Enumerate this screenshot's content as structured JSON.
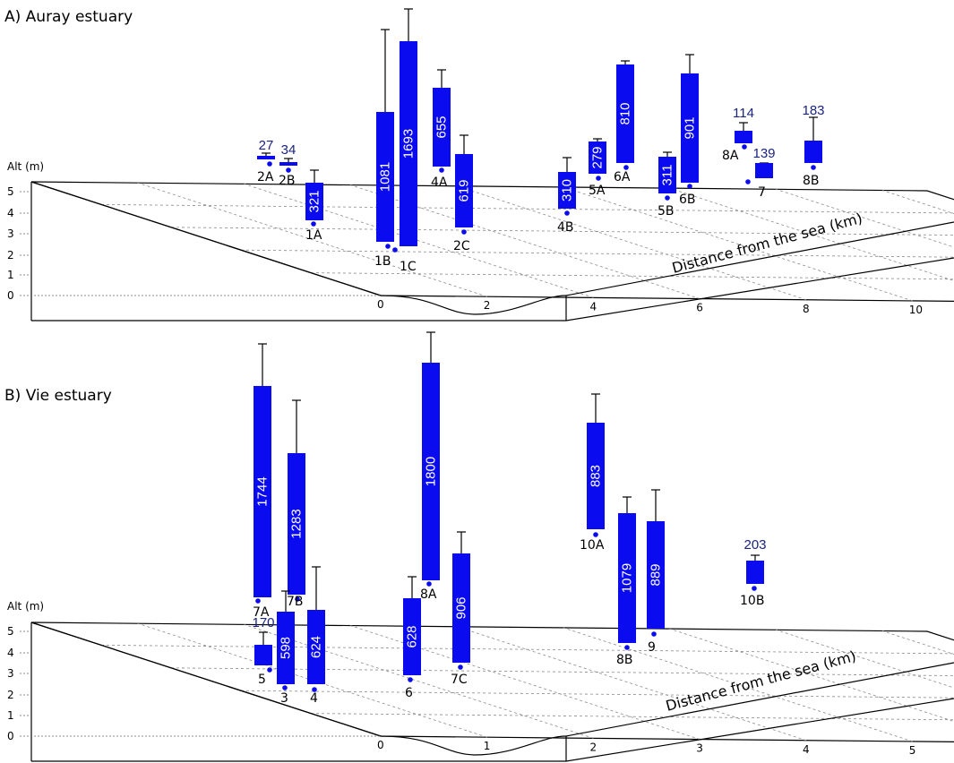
{
  "colors": {
    "bar": "#0b0bf0",
    "outside_value": "#1a237e",
    "grid": "#8a8a8a"
  },
  "chart_data": [
    {
      "type": "bar",
      "title": "A) Auray estuary",
      "ylabel": "Alt (m)",
      "xlabel": "Distance from the sea (km)",
      "ylim": [
        0,
        5
      ],
      "yticks": [
        "0",
        "1",
        "2",
        "3",
        "4",
        "5"
      ],
      "xlim": [
        0,
        16
      ],
      "xticks": [
        "0",
        "2",
        "4",
        "6",
        "8",
        "10",
        "12",
        "14",
        "16"
      ],
      "categories": [
        "2A",
        "2B",
        "1A",
        "1B",
        "1C",
        "4A",
        "2C",
        "4B",
        "5A",
        "6A",
        "5B",
        "6B",
        "8A",
        "7",
        "8B"
      ],
      "values": [
        27,
        34,
        321,
        1081,
        1693,
        655,
        619,
        310,
        279,
        810,
        311,
        901,
        114,
        139,
        183
      ]
    },
    {
      "type": "bar",
      "title": "B) Vie estuary",
      "ylabel": "Alt (m)",
      "xlabel": "Distance from the sea (km)",
      "ylim": [
        0,
        5
      ],
      "yticks": [
        "0",
        "1",
        "2",
        "3",
        "4",
        "5"
      ],
      "xlim": [
        0,
        8
      ],
      "xticks": [
        "0",
        "1",
        "2",
        "3",
        "4",
        "5",
        "6",
        "7",
        "8"
      ],
      "categories": [
        "7A",
        "7B",
        "5",
        "3",
        "4",
        "8A",
        "6",
        "7C",
        "10A",
        "8B",
        "9",
        "10B"
      ],
      "values": [
        1744,
        1283,
        170,
        598,
        624,
        1800,
        628,
        906,
        883,
        1079,
        889,
        203
      ]
    }
  ]
}
